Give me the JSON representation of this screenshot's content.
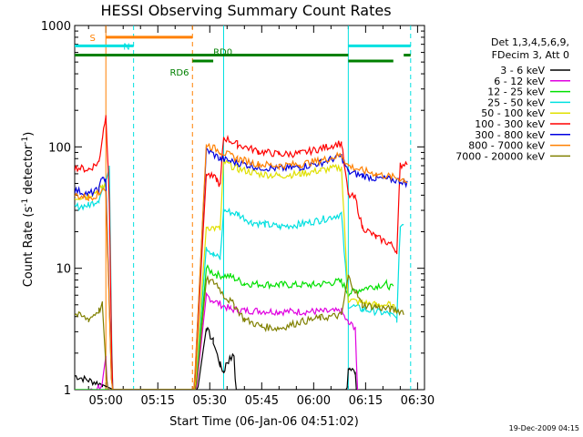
{
  "chart_data": {
    "type": "line",
    "title": "HESSI Observing Summary Count Rates",
    "xlabel": "Start Time (06-Jan-06 04:51:02)",
    "ylabel_main": "Count Rate (s",
    "ylabel_sup1": "-1",
    "ylabel_mid": " detector",
    "ylabel_sup2": "-1",
    "ylabel_end": ")",
    "ylabel": "Count Rate (s-1 detector-1)",
    "yscale": "log",
    "ylim": [
      1,
      1000
    ],
    "xlim": [
      "04:51",
      "06:32"
    ],
    "x_ticks": [
      "05:00",
      "05:15",
      "05:30",
      "05:45",
      "06:00",
      "06:15",
      "06:30"
    ],
    "y_ticks": [
      "1",
      "10",
      "100",
      "1000"
    ],
    "timestamp": "19-Dec-2009 04:15",
    "legend_header": [
      "Det 1,3,4,5,6,9,",
      "FDecim 3, Att 0"
    ],
    "series": [
      {
        "name": "3 - 6 keV",
        "color": "#000000",
        "points": [
          [
            "04:51",
            1.3
          ],
          [
            "04:59",
            1.1
          ],
          [
            "05:25",
            0.5
          ],
          [
            "05:29",
            3.2
          ],
          [
            "05:31",
            2.5
          ],
          [
            "05:33",
            1.6
          ],
          [
            "05:34",
            1.4
          ],
          [
            "05:35",
            1.7
          ],
          [
            "05:37",
            1.9
          ],
          [
            "05:38",
            0.5
          ],
          [
            "06:09",
            0.5
          ],
          [
            "06:10",
            1.5
          ],
          [
            "06:12",
            1.4
          ],
          [
            "06:13",
            0.5
          ]
        ]
      },
      {
        "name": "6 - 12 keV",
        "color": "#e000e0",
        "points": [
          [
            "04:51",
            0.8
          ],
          [
            "04:59",
            1.1
          ],
          [
            "05:00",
            1.8
          ],
          [
            "05:01",
            0.5
          ],
          [
            "05:25",
            0.5
          ],
          [
            "05:29",
            6.0
          ],
          [
            "05:31",
            5.4
          ],
          [
            "05:36",
            4.6
          ],
          [
            "05:40",
            4.5
          ],
          [
            "05:50",
            4.4
          ],
          [
            "06:00",
            4.4
          ],
          [
            "06:08",
            4.4
          ],
          [
            "06:10",
            3.5
          ],
          [
            "06:12",
            3.3
          ],
          [
            "06:13",
            0.5
          ]
        ]
      },
      {
        "name": "12 - 25 keV",
        "color": "#00e000",
        "points": [
          [
            "04:51",
            0.8
          ],
          [
            "05:25",
            0.5
          ],
          [
            "05:29",
            10
          ],
          [
            "05:32",
            8.8
          ],
          [
            "05:36",
            8.6
          ],
          [
            "05:40",
            7.5
          ],
          [
            "05:50",
            7.3
          ],
          [
            "06:00",
            7.3
          ],
          [
            "06:08",
            7.8
          ],
          [
            "06:10",
            6.2
          ],
          [
            "06:14",
            6.8
          ],
          [
            "06:18",
            7.2
          ],
          [
            "06:21",
            7.4
          ],
          [
            "06:23",
            6.8
          ]
        ]
      },
      {
        "name": "25 - 50 keV",
        "color": "#00e0e0",
        "points": [
          [
            "04:51",
            32
          ],
          [
            "04:55",
            33
          ],
          [
            "04:58",
            37
          ],
          [
            "04:59",
            44
          ],
          [
            "05:01",
            70
          ],
          [
            "05:02",
            0.5
          ],
          [
            "05:25",
            0.5
          ],
          [
            "05:29",
            15
          ],
          [
            "05:31",
            13
          ],
          [
            "05:33",
            12
          ],
          [
            "05:34",
            30
          ],
          [
            "05:38",
            28
          ],
          [
            "05:42",
            24
          ],
          [
            "05:46",
            23
          ],
          [
            "05:50",
            22
          ],
          [
            "05:56",
            23
          ],
          [
            "06:02",
            25
          ],
          [
            "06:08",
            28
          ],
          [
            "06:10",
            5
          ],
          [
            "06:14",
            4.6
          ],
          [
            "06:18",
            4.4
          ],
          [
            "06:22",
            4.2
          ],
          [
            "06:24",
            3.8
          ],
          [
            "06:25",
            22
          ],
          [
            "06:26",
            24
          ]
        ]
      },
      {
        "name": "50 - 100 keV",
        "color": "#e0e000",
        "points": [
          [
            "04:51",
            38
          ],
          [
            "04:55",
            40
          ],
          [
            "04:58",
            44
          ],
          [
            "04:59",
            48
          ],
          [
            "05:00",
            46
          ],
          [
            "05:02",
            0.5
          ],
          [
            "05:25",
            0.5
          ],
          [
            "05:29",
            22
          ],
          [
            "05:33",
            21
          ],
          [
            "05:34",
            75
          ],
          [
            "05:38",
            66
          ],
          [
            "05:44",
            60
          ],
          [
            "05:50",
            58
          ],
          [
            "05:56",
            60
          ],
          [
            "06:02",
            64
          ],
          [
            "06:08",
            68
          ],
          [
            "06:10",
            5.5
          ],
          [
            "06:14",
            5.2
          ],
          [
            "06:18",
            5.0
          ],
          [
            "06:22",
            5.0
          ],
          [
            "06:24",
            4.5
          ]
        ]
      },
      {
        "name": "100 - 300 keV",
        "color": "#ff0000",
        "points": [
          [
            "04:51",
            68
          ],
          [
            "04:55",
            65
          ],
          [
            "04:58",
            75
          ],
          [
            "04:59",
            120
          ],
          [
            "05:00",
            190
          ],
          [
            "05:01",
            35
          ],
          [
            "05:02",
            0.5
          ],
          [
            "05:25",
            0.5
          ],
          [
            "05:29",
            60
          ],
          [
            "05:32",
            54
          ],
          [
            "05:33",
            48
          ],
          [
            "05:34",
            120
          ],
          [
            "05:38",
            105
          ],
          [
            "05:44",
            92
          ],
          [
            "05:50",
            87
          ],
          [
            "05:56",
            88
          ],
          [
            "06:02",
            97
          ],
          [
            "06:08",
            108
          ],
          [
            "06:10",
            40
          ],
          [
            "06:12",
            38
          ],
          [
            "06:14",
            22
          ],
          [
            "06:18",
            18
          ],
          [
            "06:22",
            16
          ],
          [
            "06:24",
            14
          ],
          [
            "06:25",
            70
          ],
          [
            "06:27",
            75
          ]
        ]
      },
      {
        "name": "300 - 800 keV",
        "color": "#0000e0",
        "points": [
          [
            "04:51",
            44
          ],
          [
            "04:55",
            41
          ],
          [
            "04:58",
            44
          ],
          [
            "04:59",
            58
          ],
          [
            "05:00",
            52
          ],
          [
            "05:02",
            0.5
          ],
          [
            "05:25",
            0.5
          ],
          [
            "05:29",
            95
          ],
          [
            "05:33",
            80
          ],
          [
            "05:38",
            74
          ],
          [
            "05:44",
            68
          ],
          [
            "05:50",
            66
          ],
          [
            "05:56",
            68
          ],
          [
            "06:02",
            74
          ],
          [
            "06:08",
            84
          ],
          [
            "06:10",
            62
          ],
          [
            "06:14",
            58
          ],
          [
            "06:18",
            55
          ],
          [
            "06:22",
            54
          ],
          [
            "06:26",
            52
          ],
          [
            "06:27",
            50
          ]
        ]
      },
      {
        "name": "800 - 7000 keV",
        "color": "#ff8000",
        "points": [
          [
            "04:51",
            40
          ],
          [
            "04:55",
            38
          ],
          [
            "04:58",
            41
          ],
          [
            "04:59",
            46
          ],
          [
            "05:00",
            42
          ],
          [
            "05:02",
            0.5
          ],
          [
            "05:25",
            0.5
          ],
          [
            "05:29",
            105
          ],
          [
            "05:33",
            92
          ],
          [
            "05:38",
            80
          ],
          [
            "05:44",
            72
          ],
          [
            "05:50",
            70
          ],
          [
            "05:56",
            72
          ],
          [
            "06:02",
            77
          ],
          [
            "06:08",
            86
          ],
          [
            "06:10",
            70
          ],
          [
            "06:14",
            64
          ],
          [
            "06:18",
            60
          ],
          [
            "06:22",
            57
          ],
          [
            "06:26",
            54
          ],
          [
            "06:27",
            52
          ]
        ]
      },
      {
        "name": "7000 - 20000 keV",
        "color": "#808000",
        "points": [
          [
            "04:51",
            4.2
          ],
          [
            "04:55",
            3.8
          ],
          [
            "04:58",
            4.5
          ],
          [
            "04:59",
            5.0
          ],
          [
            "05:01",
            0.5
          ],
          [
            "05:25",
            0.5
          ],
          [
            "05:29",
            8.0
          ],
          [
            "05:32",
            7.5
          ],
          [
            "05:34",
            6.0
          ],
          [
            "05:37",
            5.0
          ],
          [
            "05:40",
            3.8
          ],
          [
            "05:45",
            3.3
          ],
          [
            "05:50",
            3.2
          ],
          [
            "05:56",
            3.6
          ],
          [
            "06:02",
            3.9
          ],
          [
            "06:08",
            4.1
          ],
          [
            "06:10",
            8.5
          ],
          [
            "06:14",
            5.0
          ],
          [
            "06:18",
            4.8
          ],
          [
            "06:22",
            4.6
          ],
          [
            "06:26",
            4.4
          ]
        ]
      }
    ],
    "flags": [
      {
        "label": "S",
        "color": "#ff8000",
        "y": 800,
        "segments": [
          [
            "05:00",
            "05:25"
          ]
        ]
      },
      {
        "label": "N",
        "color": "#00e0e0",
        "y": 680,
        "segments": [
          [
            "04:51",
            "05:08"
          ],
          [
            "06:10",
            "06:28"
          ]
        ]
      },
      {
        "label": "RD0",
        "color": "#008000",
        "y": 570,
        "segments": [
          [
            "04:51",
            "06:10"
          ],
          [
            "06:26",
            "06:28"
          ]
        ]
      },
      {
        "label": "RD6",
        "color": "#008000",
        "y": 510,
        "segments": [
          [
            "05:25",
            "05:31"
          ],
          [
            "06:10",
            "06:23"
          ]
        ]
      }
    ],
    "vlines": [
      {
        "t": "05:00",
        "color": "#ff8000",
        "dashed": false
      },
      {
        "t": "05:08",
        "color": "#00e0e0",
        "dashed": true
      },
      {
        "t": "05:25",
        "color": "#ff8000",
        "dashed": true
      },
      {
        "t": "05:34",
        "color": "#00e0e0",
        "dashed": false
      },
      {
        "t": "06:10",
        "color": "#00e0e0",
        "dashed": false
      },
      {
        "t": "06:28",
        "color": "#00e0e0",
        "dashed": true
      }
    ]
  }
}
